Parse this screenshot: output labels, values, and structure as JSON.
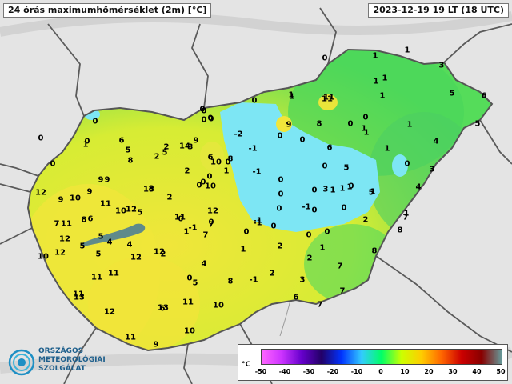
{
  "header": {
    "title": "24 órás maximumhőmérséklet (2m) [°C]",
    "timestamp": "2023-12-19 19 LT (18 UTC)"
  },
  "legend": {
    "unit": "°C",
    "ticks": [
      "-50",
      "-40",
      "-30",
      "-20",
      "-10",
      "0",
      "10",
      "20",
      "30",
      "40",
      "50"
    ],
    "colors": [
      "#ff66ff",
      "#cc33ff",
      "#6600cc",
      "#220066",
      "#0033ff",
      "#33ccff",
      "#00ff66",
      "#ccff00",
      "#ffcc00",
      "#ff6600",
      "#cc0000",
      "#880000",
      "#669999"
    ]
  },
  "logo": {
    "line1": "ORSZÁGOS",
    "line2": "METEOROLÓGIAI",
    "line3": "SZOLGÁLAT"
  },
  "colors": {
    "cold_area": "#7ee8f2",
    "warm_area": "#f5ec38",
    "mid_area": "#60e05a",
    "border": "#555555"
  },
  "station_values": [
    "0",
    "1",
    "1",
    "3",
    "5",
    "6",
    "5",
    "4",
    "3",
    "4",
    "1",
    "7",
    "8",
    "8",
    "7",
    "7",
    "7",
    "6",
    "3",
    "2",
    "1",
    "2",
    "2",
    "1",
    "0",
    "0",
    "-1",
    "-1",
    "0",
    "0",
    "0",
    "0",
    "-2",
    "-1",
    "-1",
    "0",
    "0",
    "0",
    "0",
    "1",
    "1",
    "1",
    "1",
    "1",
    "1",
    "2",
    "3",
    "5",
    "5",
    "6",
    "8",
    "9",
    "11",
    "11",
    "13",
    "11",
    "10",
    "12",
    "11",
    "11",
    "12",
    "12",
    "13",
    "12",
    "11",
    "10",
    "10",
    "9",
    "9",
    "8",
    "7",
    "6",
    "5",
    "5",
    "5",
    "4",
    "4",
    "3",
    "2",
    "2",
    "2",
    "1",
    "0",
    "0",
    "0",
    "-1",
    "0",
    "0",
    "0",
    "0",
    "-1",
    "0",
    "0",
    "0",
    "1",
    "0",
    "1",
    "1",
    "1",
    "0",
    "0",
    "1",
    "1",
    "1",
    "10",
    "14",
    "6",
    "5",
    "5",
    "6",
    "8",
    "12",
    "11",
    "10",
    "9",
    "8",
    "12",
    "10",
    "11",
    "9",
    "10",
    "12",
    "12",
    "11",
    "13",
    "11",
    "9",
    "0",
    "2",
    "6",
    "5",
    "5",
    "9",
    "8",
    "7",
    "4",
    "7",
    "8",
    "-1",
    "2",
    "1",
    "1",
    "0",
    "0",
    "0",
    "0",
    "0",
    "0",
    "0",
    "0",
    "0",
    "0"
  ]
}
